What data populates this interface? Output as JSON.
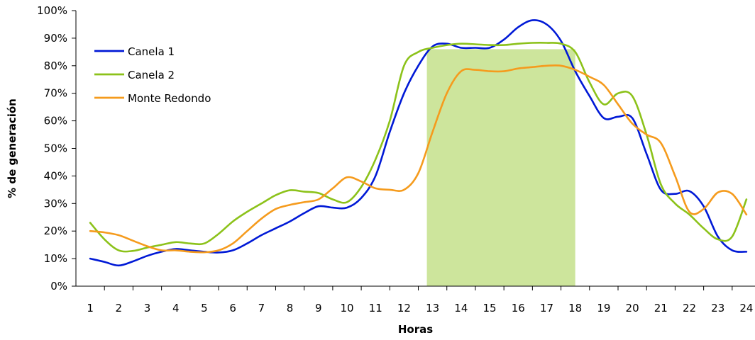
{
  "chart_data": {
    "type": "line",
    "xlabel": "Horas",
    "ylabel": "% de generación",
    "x": [
      1,
      2,
      3,
      4,
      5,
      6,
      7,
      8,
      9,
      10,
      11,
      12,
      13,
      14,
      15,
      16,
      17,
      18,
      19,
      20,
      21,
      22,
      23,
      24
    ],
    "ylim": [
      0,
      100
    ],
    "y_ticks": [
      "0%",
      "10%",
      "20%",
      "30%",
      "40%",
      "50%",
      "60%",
      "70%",
      "80%",
      "90%",
      "100%"
    ],
    "grid": false,
    "legend": "top-left",
    "highlight": {
      "x_start": 12.8,
      "x_end": 18,
      "y_top": 86,
      "color": "#cde59c"
    },
    "series": [
      {
        "name": "Canela 1",
        "color": "#0019d6",
        "points": [
          [
            1,
            10
          ],
          [
            1.5,
            8.8
          ],
          [
            2,
            7.5
          ],
          [
            2.5,
            9
          ],
          [
            3,
            11
          ],
          [
            3.5,
            12.5
          ],
          [
            4,
            13.5
          ],
          [
            4.5,
            13
          ],
          [
            5,
            12.5
          ],
          [
            5.5,
            12.2
          ],
          [
            6,
            13
          ],
          [
            6.5,
            15.5
          ],
          [
            7,
            18.5
          ],
          [
            7.5,
            21
          ],
          [
            8,
            23.5
          ],
          [
            8.5,
            26.5
          ],
          [
            9,
            29
          ],
          [
            9.5,
            28.5
          ],
          [
            10,
            28.5
          ],
          [
            10.5,
            32
          ],
          [
            11,
            40
          ],
          [
            11.5,
            56
          ],
          [
            12,
            70
          ],
          [
            12.5,
            80
          ],
          [
            13,
            87
          ],
          [
            13.5,
            88
          ],
          [
            14,
            86.5
          ],
          [
            14.5,
            86.5
          ],
          [
            15,
            86.5
          ],
          [
            15.5,
            89.5
          ],
          [
            16,
            94
          ],
          [
            16.5,
            96.5
          ],
          [
            17,
            95
          ],
          [
            17.5,
            89
          ],
          [
            18,
            78
          ],
          [
            18.5,
            69
          ],
          [
            19,
            61
          ],
          [
            19.5,
            61.5
          ],
          [
            20,
            61
          ],
          [
            20.5,
            48
          ],
          [
            21,
            35
          ],
          [
            21.5,
            33.5
          ],
          [
            22,
            34.5
          ],
          [
            22.5,
            29
          ],
          [
            23,
            18
          ],
          [
            23.5,
            13
          ],
          [
            24,
            12.5
          ]
        ]
      },
      {
        "name": "Canela 2",
        "color": "#8cc21a",
        "points": [
          [
            1,
            23
          ],
          [
            1.5,
            17
          ],
          [
            2,
            13
          ],
          [
            2.5,
            12.8
          ],
          [
            3,
            14
          ],
          [
            3.5,
            15
          ],
          [
            4,
            16
          ],
          [
            4.5,
            15.5
          ],
          [
            5,
            15.5
          ],
          [
            5.5,
            19
          ],
          [
            6,
            23.5
          ],
          [
            6.5,
            27
          ],
          [
            7,
            30
          ],
          [
            7.5,
            33
          ],
          [
            8,
            34.8
          ],
          [
            8.5,
            34.3
          ],
          [
            9,
            33.8
          ],
          [
            9.5,
            31.5
          ],
          [
            10,
            30.5
          ],
          [
            10.5,
            36
          ],
          [
            11,
            46
          ],
          [
            11.5,
            60
          ],
          [
            12,
            80
          ],
          [
            12.5,
            85
          ],
          [
            13,
            86.5
          ],
          [
            13.5,
            87.5
          ],
          [
            14,
            88
          ],
          [
            14.5,
            87.8
          ],
          [
            15,
            87.5
          ],
          [
            15.5,
            87.5
          ],
          [
            16,
            88
          ],
          [
            16.5,
            88.3
          ],
          [
            17,
            88.3
          ],
          [
            17.5,
            88
          ],
          [
            18,
            85
          ],
          [
            18.5,
            74
          ],
          [
            19,
            66
          ],
          [
            19.5,
            70
          ],
          [
            20,
            69
          ],
          [
            20.5,
            55
          ],
          [
            21,
            37
          ],
          [
            21.5,
            30
          ],
          [
            22,
            26
          ],
          [
            22.5,
            21
          ],
          [
            23,
            17
          ],
          [
            23.5,
            18
          ],
          [
            24,
            31.5
          ]
        ]
      },
      {
        "name": "Monte Redondo",
        "color": "#f59b1d",
        "points": [
          [
            1,
            20
          ],
          [
            1.5,
            19.5
          ],
          [
            2,
            18.5
          ],
          [
            2.5,
            16.5
          ],
          [
            3,
            14.5
          ],
          [
            3.5,
            13
          ],
          [
            4,
            13
          ],
          [
            4.5,
            12.5
          ],
          [
            5,
            12.3
          ],
          [
            5.5,
            13
          ],
          [
            6,
            15.5
          ],
          [
            6.5,
            20
          ],
          [
            7,
            24.5
          ],
          [
            7.5,
            28
          ],
          [
            8,
            29.5
          ],
          [
            8.5,
            30.5
          ],
          [
            9,
            31.5
          ],
          [
            9.5,
            35.5
          ],
          [
            10,
            39.5
          ],
          [
            10.5,
            38
          ],
          [
            11,
            35.5
          ],
          [
            11.5,
            35
          ],
          [
            12,
            35
          ],
          [
            12.5,
            41
          ],
          [
            13,
            56
          ],
          [
            13.5,
            70
          ],
          [
            14,
            78
          ],
          [
            14.5,
            78.5
          ],
          [
            15,
            78
          ],
          [
            15.5,
            78
          ],
          [
            16,
            79
          ],
          [
            16.5,
            79.5
          ],
          [
            17,
            80
          ],
          [
            17.5,
            80
          ],
          [
            18,
            78.5
          ],
          [
            18.5,
            76
          ],
          [
            19,
            73
          ],
          [
            19.5,
            66
          ],
          [
            20,
            59
          ],
          [
            20.5,
            55
          ],
          [
            21,
            52
          ],
          [
            21.5,
            40
          ],
          [
            22,
            27
          ],
          [
            22.5,
            28
          ],
          [
            23,
            34
          ],
          [
            23.5,
            33.5
          ],
          [
            24,
            26
          ]
        ]
      }
    ]
  }
}
